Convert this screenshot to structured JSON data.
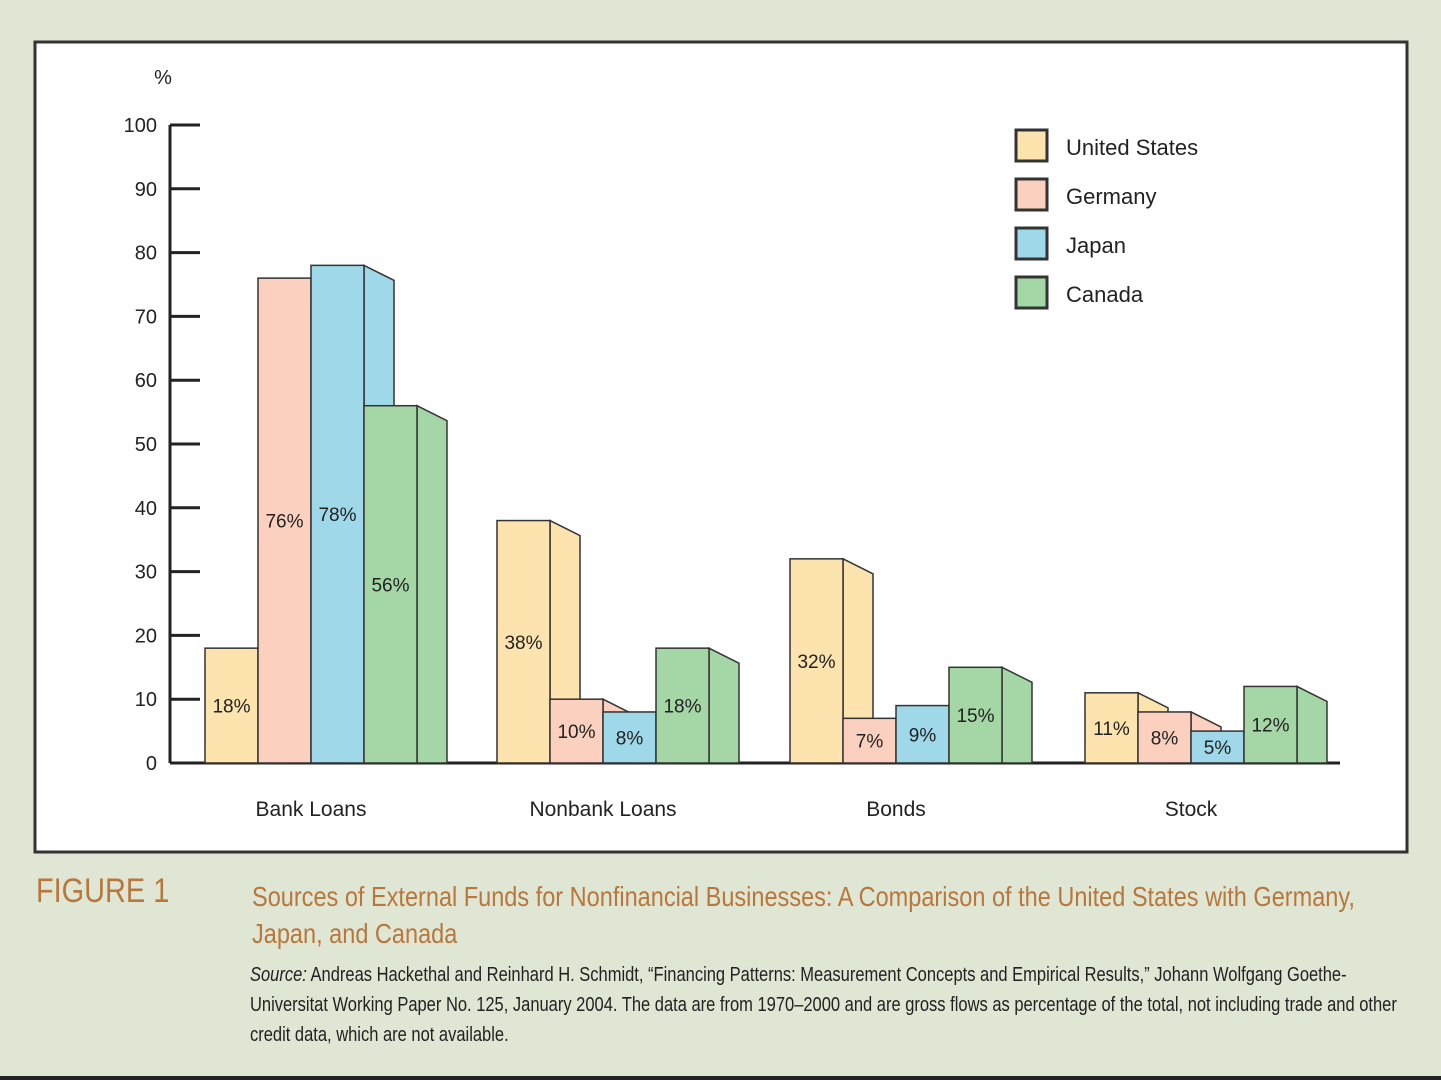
{
  "figure": {
    "label": "FIGURE 1",
    "title": "Sources of External Funds for Nonfinancial Businesses: A Comparison of the United States with Germany, Japan, and Canada",
    "source_prefix": "Source:",
    "source_text": "Andreas Hackethal and Reinhard H. Schmidt, “Financing Patterns: Measurement Concepts and Empirical Results,” Johann Wolfgang Goethe-Universitat Working Paper No. 125, January 2004. The data are from 1970–2000 and are gross flows as percentage of the total, not including trade and other credit data, which are not available."
  },
  "chart_data": {
    "type": "bar",
    "title": "",
    "xlabel": "",
    "ylabel": "%",
    "ylim": [
      0,
      100
    ],
    "yticks": [
      "0",
      "10",
      "20",
      "30",
      "40",
      "50",
      "60",
      "70",
      "80",
      "90",
      "100"
    ],
    "categories": [
      "Bank Loans",
      "Nonbank Loans",
      "Bonds",
      "Stock"
    ],
    "series": [
      {
        "name": "United States",
        "color": "#fde3ad",
        "values": [
          18,
          38,
          32,
          11
        ],
        "labels": [
          "18%",
          "38%",
          "32%",
          "11%"
        ]
      },
      {
        "name": "Germany",
        "color": "#fbd0bf",
        "values": [
          76,
          10,
          7,
          8
        ],
        "labels": [
          "76%",
          "10%",
          "7%",
          "8%"
        ]
      },
      {
        "name": "Japan",
        "color": "#9fd8e8",
        "values": [
          78,
          8,
          9,
          5
        ],
        "labels": [
          "78%",
          "8%",
          "9%",
          "5%"
        ]
      },
      {
        "name": "Canada",
        "color": "#a5d6a5",
        "values": [
          56,
          18,
          15,
          12
        ],
        "labels": [
          "56%",
          "18%",
          "15%",
          "12%"
        ]
      }
    ],
    "legend_position": "top-right",
    "grid": false,
    "style": "3d-bars"
  }
}
